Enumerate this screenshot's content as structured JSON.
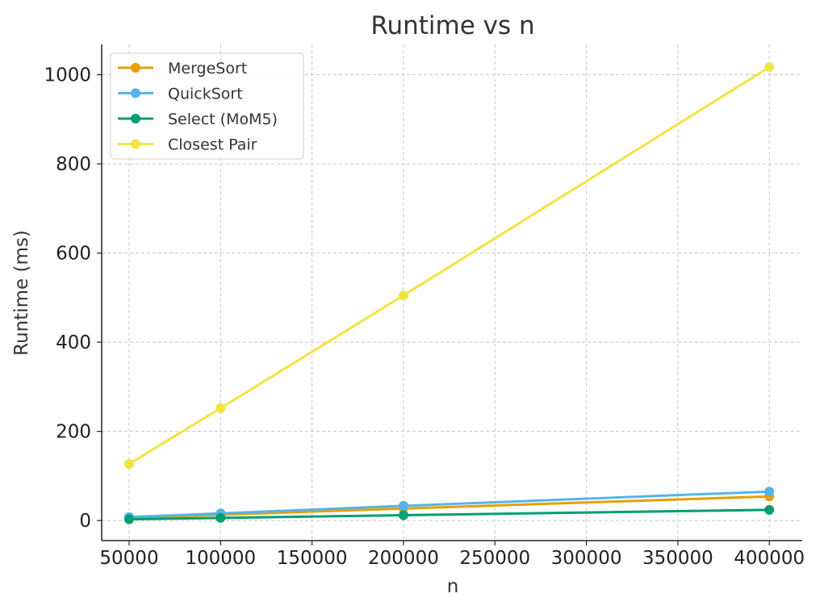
{
  "chart_data": {
    "type": "line",
    "title": "Runtime vs n",
    "xlabel": "n",
    "ylabel": "Runtime (ms)",
    "x": [
      50000,
      100000,
      200000,
      400000
    ],
    "xlim": [
      35000,
      418000
    ],
    "ylim": [
      -45,
      1068
    ],
    "xticks": [
      50000,
      100000,
      150000,
      200000,
      250000,
      300000,
      350000,
      400000
    ],
    "yticks": [
      0,
      200,
      400,
      600,
      800,
      1000
    ],
    "grid": true,
    "legend_position": "top-left",
    "series": [
      {
        "name": "MergeSort",
        "color": "#E69F00",
        "values": [
          6,
          13,
          27,
          54
        ]
      },
      {
        "name": "QuickSort",
        "color": "#56B4E9",
        "values": [
          8,
          16,
          33,
          65
        ]
      },
      {
        "name": "Select (MoM5)",
        "color": "#009E73",
        "values": [
          3,
          6,
          12,
          24
        ]
      },
      {
        "name": "Closest Pair",
        "color": "#F0E442",
        "values": [
          127,
          252,
          505,
          1017
        ]
      }
    ]
  }
}
